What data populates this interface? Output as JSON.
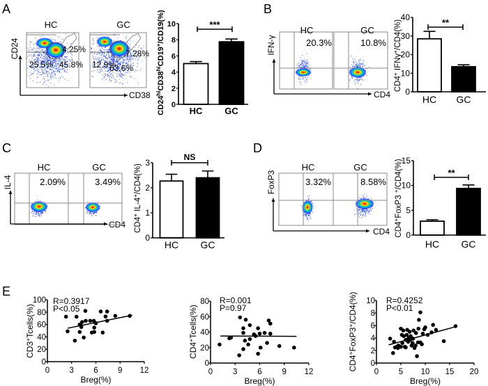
{
  "panel_labels": [
    "A",
    "B",
    "C",
    "D",
    "E"
  ],
  "flow": {
    "A": {
      "y_axis": "CD24",
      "x_axis": "CD38",
      "plots": [
        {
          "group": "HC",
          "gates": [
            "4.25%",
            "25.5%",
            "45.8%"
          ]
        },
        {
          "group": "GC",
          "gates": [
            "7.28%",
            "12.9%",
            "63.6%"
          ]
        }
      ]
    },
    "B": {
      "y_axis": "IFN-γ",
      "x_axis": "CD4",
      "plots": [
        {
          "group": "HC",
          "gates": [
            "20.3%"
          ]
        },
        {
          "group": "GC",
          "gates": [
            "10.8%"
          ]
        }
      ]
    },
    "C": {
      "y_axis": "IL-4",
      "x_axis": "CD4",
      "plots": [
        {
          "group": "HC",
          "gates": [
            "2.09%"
          ]
        },
        {
          "group": "GC",
          "gates": [
            "3.49%"
          ]
        }
      ]
    },
    "D": {
      "y_axis": "FoxP3",
      "x_axis": "CD4",
      "plots": [
        {
          "group": "HC",
          "gates": [
            "3.32%"
          ]
        },
        {
          "group": "GC",
          "gates": [
            "8.58%"
          ]
        }
      ]
    }
  },
  "chart_data": [
    {
      "type": "bar",
      "panel": "A",
      "categories": [
        "HC",
        "GC"
      ],
      "values": [
        5.05,
        7.75
      ],
      "errors": [
        0.25,
        0.35
      ],
      "ylim": [
        0,
        10
      ],
      "yticks": [
        0,
        2,
        4,
        6,
        8,
        10
      ],
      "significance": "***",
      "colors": [
        "#ffffff",
        "#000000"
      ],
      "ylabel_parts": [
        {
          "text": "CD24"
        },
        {
          "text": "hi",
          "sup": true
        },
        {
          "text": "CD38"
        },
        {
          "text": "hi",
          "sup": true
        },
        {
          "text": "CD19"
        },
        {
          "text": "+",
          "sup": true
        },
        {
          "text": "/CD19(%)"
        }
      ]
    },
    {
      "type": "bar",
      "panel": "B",
      "categories": [
        "HC",
        "GC"
      ],
      "values": [
        28.5,
        13.5
      ],
      "errors": [
        4.0,
        1.0
      ],
      "ylim": [
        0,
        40
      ],
      "yticks": [
        0,
        10,
        20,
        30,
        40
      ],
      "significance": "**",
      "colors": [
        "#ffffff",
        "#000000"
      ],
      "ylabel_parts": [
        {
          "text": "CD4"
        },
        {
          "text": "+",
          "sup": true
        },
        {
          "text": " IFNγ"
        },
        {
          "text": "+",
          "sup": true
        },
        {
          "text": "/CD4(%)"
        }
      ]
    },
    {
      "type": "bar",
      "panel": "C",
      "categories": [
        "HC",
        "GC"
      ],
      "values": [
        2.27,
        2.4
      ],
      "errors": [
        0.27,
        0.27
      ],
      "ylim": [
        0,
        3
      ],
      "yticks": [
        0,
        1,
        2,
        3
      ],
      "significance": "NS",
      "colors": [
        "#ffffff",
        "#000000"
      ],
      "ylabel_parts": [
        {
          "text": "CD4"
        },
        {
          "text": "+",
          "sup": true
        },
        {
          "text": " IL-4"
        },
        {
          "text": "+",
          "sup": true
        },
        {
          "text": "/CD4(%)"
        }
      ]
    },
    {
      "type": "bar",
      "panel": "D",
      "categories": [
        "HC",
        "GC"
      ],
      "values": [
        2.8,
        9.4
      ],
      "errors": [
        0.3,
        0.7
      ],
      "ylim": [
        0,
        15
      ],
      "yticks": [
        0,
        5,
        10,
        15
      ],
      "significance": "**",
      "colors": [
        "#ffffff",
        "#000000"
      ],
      "ylabel_parts": [
        {
          "text": "CD4"
        },
        {
          "text": "+",
          "sup": true
        },
        {
          "text": "FoxP3 "
        },
        {
          "text": "+",
          "sup": true
        },
        {
          "text": "/CD4(%)"
        }
      ]
    },
    {
      "type": "scatter",
      "panel": "E",
      "xlabel": "Breg(%)",
      "xlim": [
        0,
        12
      ],
      "xticks": [
        0,
        3,
        6,
        9,
        12
      ],
      "ylim": [
        0,
        100
      ],
      "yticks": [
        0,
        20,
        40,
        60,
        80,
        100
      ],
      "stat_r": "R=0.3917",
      "stat_p": "P<0.05",
      "ylabel_parts": [
        {
          "text": "CD3"
        },
        {
          "text": "+",
          "sup": true
        },
        {
          "text": "Tcells(%)"
        }
      ],
      "fit": [
        [
          2.5,
          54
        ],
        [
          10.5,
          75
        ]
      ],
      "points": [
        [
          2.3,
          72.6
        ],
        [
          2.5,
          49
        ],
        [
          3.6,
          72.6
        ],
        [
          3.4,
          34
        ],
        [
          4.0,
          60
        ],
        [
          4.0,
          48
        ],
        [
          4.2,
          56
        ],
        [
          4.1,
          59
        ],
        [
          4.3,
          64
        ],
        [
          4.5,
          39
        ],
        [
          4.7,
          82
        ],
        [
          4.75,
          66
        ],
        [
          5.3,
          66
        ],
        [
          5.5,
          47
        ],
        [
          5.75,
          66
        ],
        [
          5.8,
          55
        ],
        [
          5.8,
          48
        ],
        [
          6.0,
          62
        ],
        [
          6.6,
          81
        ],
        [
          6.85,
          47
        ],
        [
          7.2,
          73
        ],
        [
          7.4,
          81
        ],
        [
          7.4,
          66
        ],
        [
          8.4,
          74
        ],
        [
          10.2,
          74
        ]
      ]
    },
    {
      "type": "scatter",
      "panel": "E",
      "xlabel": "Breg(%)",
      "xlim": [
        0,
        12
      ],
      "xticks": [
        0,
        3,
        6,
        9,
        12
      ],
      "ylim": [
        0,
        80
      ],
      "yticks": [
        0,
        20,
        40,
        60,
        80
      ],
      "stat_r": "R=0.001",
      "stat_p": "P=0.97",
      "ylabel_parts": [
        {
          "text": "CD4"
        },
        {
          "text": "+",
          "sup": true
        },
        {
          "text": "Tcells(%)"
        }
      ],
      "fit": [
        [
          1.2,
          35
        ],
        [
          10.5,
          34.5
        ]
      ],
      "points": [
        [
          1.1,
          24
        ],
        [
          2.3,
          32
        ],
        [
          2.5,
          33
        ],
        [
          3.5,
          10
        ],
        [
          3.6,
          59
        ],
        [
          4.0,
          18
        ],
        [
          4.0,
          39
        ],
        [
          4.0,
          45
        ],
        [
          4.2,
          29
        ],
        [
          4.3,
          56
        ],
        [
          4.6,
          24
        ],
        [
          4.8,
          31
        ],
        [
          4.8,
          49
        ],
        [
          5.3,
          37
        ],
        [
          5.5,
          35
        ],
        [
          5.8,
          12
        ],
        [
          5.8,
          45
        ],
        [
          6.0,
          38
        ],
        [
          6.1,
          20
        ],
        [
          6.6,
          39
        ],
        [
          6.9,
          26
        ],
        [
          7.1,
          55
        ],
        [
          7.3,
          51
        ],
        [
          7.3,
          38
        ],
        [
          8.4,
          22
        ],
        [
          10.2,
          20
        ]
      ]
    },
    {
      "type": "scatter",
      "panel": "E",
      "xlabel": "Breg(%)",
      "xlim": [
        0,
        20
      ],
      "xticks": [
        0,
        5,
        10,
        15,
        20
      ],
      "ylim": [
        0,
        10
      ],
      "yticks": [
        0,
        2,
        4,
        6,
        8,
        10
      ],
      "stat_r": "R=0.4252",
      "stat_p": "P<0.01",
      "ylabel_parts": [
        {
          "text": "CD4"
        },
        {
          "text": "+",
          "sup": true
        },
        {
          "text": "FoxP3"
        },
        {
          "text": "+",
          "sup": true
        },
        {
          "text": "/CD4(%)"
        }
      ],
      "fit": [
        [
          2.5,
          2.9
        ],
        [
          16.2,
          5.8
        ]
      ],
      "points": [
        [
          2.8,
          3.9
        ],
        [
          3.4,
          1.6
        ],
        [
          3.6,
          3.4
        ],
        [
          3.8,
          2.5
        ],
        [
          4.2,
          2.6
        ],
        [
          4.4,
          2.4
        ],
        [
          4.5,
          2.8
        ],
        [
          5,
          2.6
        ],
        [
          5,
          5.5
        ],
        [
          5.2,
          4.5
        ],
        [
          5.3,
          3.2
        ],
        [
          5.5,
          5.2
        ],
        [
          5.6,
          4.3
        ],
        [
          5.8,
          2.6
        ],
        [
          6,
          3.7
        ],
        [
          6,
          2.5
        ],
        [
          6.2,
          4.5
        ],
        [
          6.3,
          5.3
        ],
        [
          6.5,
          3.4
        ],
        [
          6.6,
          4.0
        ],
        [
          6.8,
          5.0
        ],
        [
          6.9,
          3.7
        ],
        [
          7,
          4.3
        ],
        [
          7.2,
          2.8
        ],
        [
          7.4,
          3.2
        ],
        [
          7.5,
          3.9
        ],
        [
          7.6,
          5.2
        ],
        [
          7.8,
          2.4
        ],
        [
          8,
          2.8
        ],
        [
          8.1,
          4.8
        ],
        [
          8.3,
          1.1
        ],
        [
          8.5,
          3.3
        ],
        [
          8.6,
          5.5
        ],
        [
          8.7,
          6.9
        ],
        [
          9,
          8.1
        ],
        [
          9,
          3.3
        ],
        [
          9.3,
          3.0
        ],
        [
          9.5,
          4.7
        ],
        [
          9.8,
          5.4
        ],
        [
          10,
          5.7
        ],
        [
          10.5,
          4.5
        ],
        [
          11.3,
          4.9
        ],
        [
          11.6,
          6.1
        ],
        [
          12.2,
          5.3
        ],
        [
          13.8,
          3.5
        ],
        [
          16.2,
          5.9
        ]
      ]
    }
  ]
}
